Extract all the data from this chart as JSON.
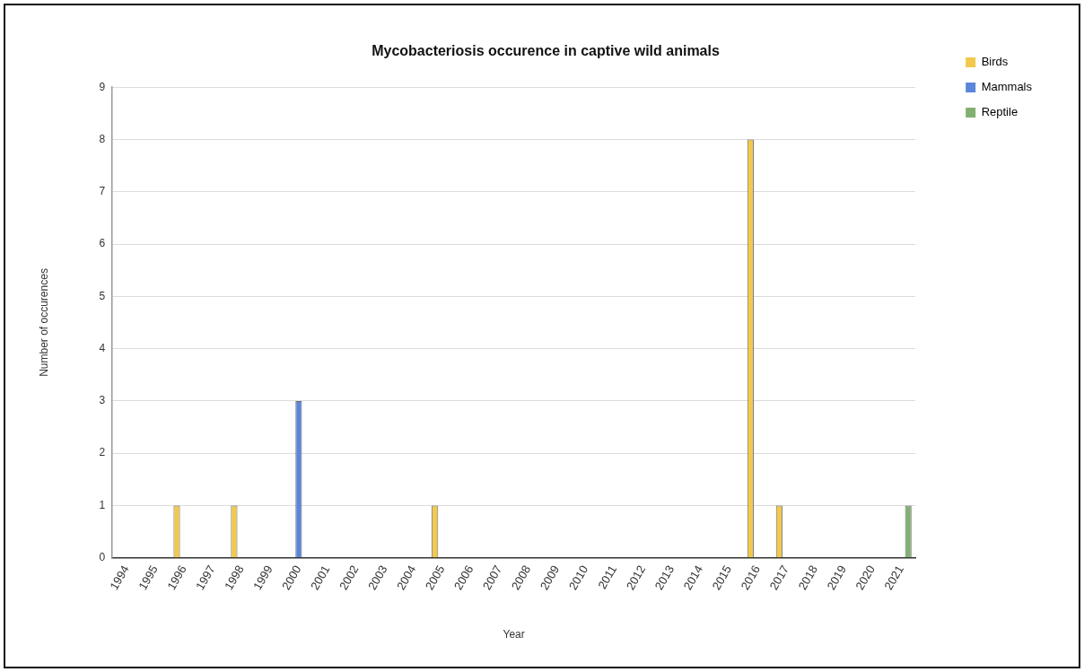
{
  "chart_data": {
    "type": "bar",
    "title": "Mycobacteriosis occurence in captive wild animals",
    "xlabel": "Year",
    "ylabel": "Number of occurences",
    "categories": [
      "1994",
      "1995",
      "1996",
      "1997",
      "1998",
      "1999",
      "2000",
      "2001",
      "2002",
      "2003",
      "2004",
      "2005",
      "2006",
      "2007",
      "2008",
      "2009",
      "2010",
      "2011",
      "2012",
      "2013",
      "2014",
      "2015",
      "2016",
      "2017",
      "2018",
      "2019",
      "2020",
      "2021"
    ],
    "series": [
      {
        "name": "Birds",
        "color": "#f2c94c",
        "values": [
          0,
          0,
          1,
          0,
          1,
          0,
          0,
          0,
          0,
          0,
          0,
          1,
          0,
          0,
          0,
          0,
          0,
          0,
          0,
          0,
          0,
          0,
          8,
          1,
          0,
          0,
          0,
          0
        ]
      },
      {
        "name": "Mammals",
        "color": "#5b86d9",
        "values": [
          0,
          0,
          0,
          0,
          0,
          0,
          3,
          0,
          0,
          0,
          0,
          0,
          0,
          0,
          0,
          0,
          0,
          0,
          0,
          0,
          0,
          0,
          0,
          0,
          0,
          0,
          0,
          0
        ]
      },
      {
        "name": "Reptile",
        "color": "#82b072",
        "values": [
          0,
          0,
          0,
          0,
          0,
          0,
          0,
          0,
          0,
          0,
          0,
          0,
          0,
          0,
          0,
          0,
          0,
          0,
          0,
          0,
          0,
          0,
          0,
          0,
          0,
          0,
          0,
          1
        ]
      }
    ],
    "ylim": [
      0,
      9
    ],
    "yticks": [
      0,
      1,
      2,
      3,
      4,
      5,
      6,
      7,
      8,
      9
    ],
    "grid": "y",
    "legend": "top right"
  }
}
